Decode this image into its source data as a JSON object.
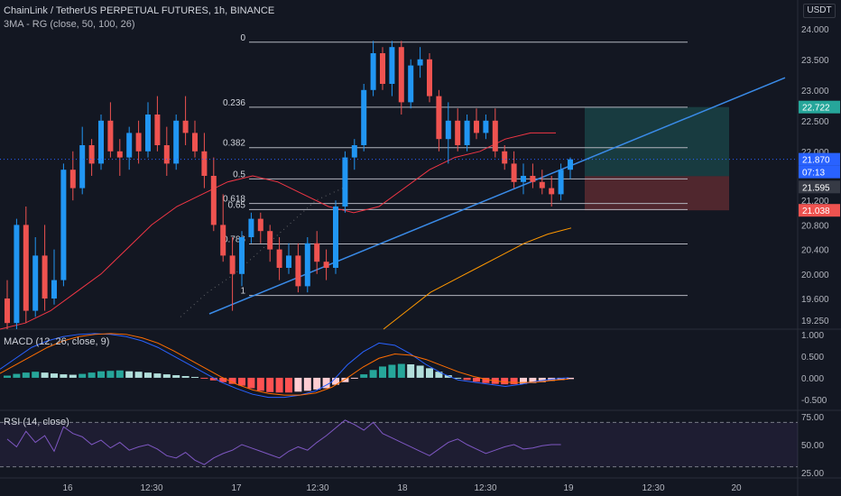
{
  "header": {
    "title": "ChainLink / TetherUS PERPETUAL FUTURES, 1h, BINANCE",
    "ma_indicator": "3MA - RG (close, 50, 100, 26)",
    "currency": "USDT"
  },
  "chart_data": {
    "type": "candlestick",
    "symbol": "ChainLink / TetherUS PERPETUAL FUTURES",
    "interval": "1h",
    "exchange": "BINANCE",
    "price_axis_ticks": [
      "24.000",
      "23.500",
      "23.000",
      "22.500",
      "22.000",
      "21.200",
      "20.800",
      "20.400",
      "20.000",
      "19.600",
      "19.250"
    ],
    "price_range": [
      19.1,
      24.35
    ],
    "time_axis_ticks": [
      "16",
      "12:30",
      "17",
      "12:30",
      "18",
      "12:30",
      "19",
      "12:30",
      "20"
    ],
    "price_tags": [
      {
        "label": "22.722",
        "color": "#26a69a"
      },
      {
        "label": "21.870",
        "color": "#2962ff"
      },
      {
        "label": "07:13",
        "color": "#2962ff"
      },
      {
        "label": "21.595",
        "color": "#363a45"
      },
      {
        "label": "21.038",
        "color": "#ef5350"
      }
    ],
    "fibonacci": [
      {
        "level": "0",
        "price": 23.78
      },
      {
        "level": "0.236",
        "price": 22.72
      },
      {
        "level": "0.382",
        "price": 22.06
      },
      {
        "level": "0.5",
        "price": 21.55
      },
      {
        "level": "0.618",
        "price": 21.15
      },
      {
        "level": "0.65",
        "price": 21.05
      },
      {
        "level": "0.786",
        "price": 20.49
      },
      {
        "level": "1",
        "price": 19.65
      }
    ],
    "candles": [
      {
        "o": 19.6,
        "h": 19.9,
        "l": 19.1,
        "c": 19.2
      },
      {
        "o": 19.2,
        "h": 20.9,
        "l": 19.1,
        "c": 20.8
      },
      {
        "o": 20.8,
        "h": 21.1,
        "l": 19.2,
        "c": 19.4
      },
      {
        "o": 19.4,
        "h": 20.6,
        "l": 19.3,
        "c": 20.3
      },
      {
        "o": 20.3,
        "h": 20.8,
        "l": 19.4,
        "c": 19.6
      },
      {
        "o": 19.6,
        "h": 20.4,
        "l": 19.5,
        "c": 19.9
      },
      {
        "o": 19.9,
        "h": 21.8,
        "l": 19.8,
        "c": 21.7
      },
      {
        "o": 21.7,
        "h": 22.0,
        "l": 21.2,
        "c": 21.4
      },
      {
        "o": 21.4,
        "h": 22.4,
        "l": 21.3,
        "c": 22.1
      },
      {
        "o": 22.1,
        "h": 22.2,
        "l": 21.6,
        "c": 21.8
      },
      {
        "o": 21.8,
        "h": 22.6,
        "l": 21.7,
        "c": 22.5
      },
      {
        "o": 22.5,
        "h": 22.8,
        "l": 21.9,
        "c": 22.0
      },
      {
        "o": 22.0,
        "h": 22.2,
        "l": 21.6,
        "c": 21.9
      },
      {
        "o": 21.9,
        "h": 22.4,
        "l": 21.7,
        "c": 22.3
      },
      {
        "o": 22.3,
        "h": 22.5,
        "l": 21.8,
        "c": 22.0
      },
      {
        "o": 22.0,
        "h": 22.8,
        "l": 21.9,
        "c": 22.6
      },
      {
        "o": 22.6,
        "h": 22.9,
        "l": 22.0,
        "c": 22.1
      },
      {
        "o": 22.1,
        "h": 22.4,
        "l": 21.6,
        "c": 21.8
      },
      {
        "o": 21.8,
        "h": 22.6,
        "l": 21.7,
        "c": 22.5
      },
      {
        "o": 22.5,
        "h": 22.9,
        "l": 22.1,
        "c": 22.3
      },
      {
        "o": 22.3,
        "h": 22.5,
        "l": 21.9,
        "c": 22.0
      },
      {
        "o": 22.0,
        "h": 22.3,
        "l": 21.4,
        "c": 21.6
      },
      {
        "o": 21.6,
        "h": 21.9,
        "l": 20.7,
        "c": 20.8
      },
      {
        "o": 20.8,
        "h": 21.3,
        "l": 20.2,
        "c": 20.3
      },
      {
        "o": 20.3,
        "h": 20.6,
        "l": 19.4,
        "c": 20.0
      },
      {
        "o": 20.0,
        "h": 20.7,
        "l": 19.8,
        "c": 20.6
      },
      {
        "o": 20.6,
        "h": 21.0,
        "l": 20.5,
        "c": 20.9
      },
      {
        "o": 20.9,
        "h": 21.0,
        "l": 20.5,
        "c": 20.7
      },
      {
        "o": 20.7,
        "h": 20.8,
        "l": 20.2,
        "c": 20.4
      },
      {
        "o": 20.4,
        "h": 20.6,
        "l": 19.9,
        "c": 20.1
      },
      {
        "o": 20.1,
        "h": 20.5,
        "l": 20.0,
        "c": 20.3
      },
      {
        "o": 20.3,
        "h": 20.5,
        "l": 19.7,
        "c": 19.8
      },
      {
        "o": 19.8,
        "h": 20.6,
        "l": 19.7,
        "c": 20.5
      },
      {
        "o": 20.5,
        "h": 20.7,
        "l": 20.0,
        "c": 20.2
      },
      {
        "o": 20.2,
        "h": 20.4,
        "l": 19.9,
        "c": 20.1
      },
      {
        "o": 20.1,
        "h": 21.2,
        "l": 20.0,
        "c": 21.1
      },
      {
        "o": 21.1,
        "h": 22.0,
        "l": 21.0,
        "c": 21.9
      },
      {
        "o": 21.9,
        "h": 22.2,
        "l": 21.7,
        "c": 22.1
      },
      {
        "o": 22.1,
        "h": 23.1,
        "l": 22.0,
        "c": 23.0
      },
      {
        "o": 23.0,
        "h": 23.8,
        "l": 22.9,
        "c": 23.6
      },
      {
        "o": 23.6,
        "h": 23.7,
        "l": 23.0,
        "c": 23.1
      },
      {
        "o": 23.1,
        "h": 23.8,
        "l": 22.9,
        "c": 23.7
      },
      {
        "o": 23.7,
        "h": 23.8,
        "l": 22.6,
        "c": 22.8
      },
      {
        "o": 22.8,
        "h": 23.5,
        "l": 22.7,
        "c": 23.4
      },
      {
        "o": 23.4,
        "h": 23.7,
        "l": 23.2,
        "c": 23.5
      },
      {
        "o": 23.5,
        "h": 23.6,
        "l": 22.8,
        "c": 22.9
      },
      {
        "o": 22.9,
        "h": 23.0,
        "l": 22.0,
        "c": 22.2
      },
      {
        "o": 22.2,
        "h": 22.8,
        "l": 21.8,
        "c": 22.5
      },
      {
        "o": 22.5,
        "h": 22.7,
        "l": 22.0,
        "c": 22.1
      },
      {
        "o": 22.1,
        "h": 22.6,
        "l": 22.0,
        "c": 22.5
      },
      {
        "o": 22.5,
        "h": 22.7,
        "l": 22.2,
        "c": 22.3
      },
      {
        "o": 22.3,
        "h": 22.6,
        "l": 22.2,
        "c": 22.5
      },
      {
        "o": 22.5,
        "h": 22.7,
        "l": 21.9,
        "c": 22.0
      },
      {
        "o": 22.0,
        "h": 22.1,
        "l": 21.7,
        "c": 21.8
      },
      {
        "o": 21.8,
        "h": 22.0,
        "l": 21.4,
        "c": 21.5
      },
      {
        "o": 21.5,
        "h": 21.8,
        "l": 21.3,
        "c": 21.6
      },
      {
        "o": 21.6,
        "h": 21.8,
        "l": 21.4,
        "c": 21.5
      },
      {
        "o": 21.5,
        "h": 21.7,
        "l": 21.3,
        "c": 21.4
      },
      {
        "o": 21.4,
        "h": 21.6,
        "l": 21.1,
        "c": 21.3
      },
      {
        "o": 21.3,
        "h": 21.8,
        "l": 21.2,
        "c": 21.7
      },
      {
        "o": 21.7,
        "h": 21.9,
        "l": 21.55,
        "c": 21.87
      }
    ],
    "ma_lines": [
      {
        "name": "MA 50",
        "color": "#f23645",
        "points": [
          19.1,
          19.2,
          19.4,
          19.7,
          20.0,
          20.4,
          20.8,
          21.1,
          21.3,
          21.5,
          21.6,
          21.5,
          21.3,
          21.1,
          21.0,
          21.1,
          21.4,
          21.7,
          21.9,
          22.0,
          22.2,
          22.3,
          22.3
        ]
      },
      {
        "name": "MA 100",
        "color": "#ff9800",
        "points": [
          19.1,
          19.4,
          19.7,
          19.9,
          20.1,
          20.3,
          20.5,
          20.65,
          20.75
        ]
      },
      {
        "name": "MA 26",
        "color": "#9b9b9b",
        "points": [
          19.3,
          19.7,
          20.0,
          20.4,
          20.8,
          21.2,
          21.4
        ]
      }
    ],
    "trendline": {
      "color": "#3a8be8",
      "from": {
        "index": 26,
        "price": 19.35
      },
      "to": {
        "index": 80,
        "price": 23.2
      }
    },
    "position": {
      "entry": 21.595,
      "target": 22.722,
      "stop": 21.038
    },
    "macd": {
      "label": "MACD (12, 26, close, 9)",
      "ticks": [
        "1.000",
        "0.500",
        "0.000",
        "-0.500"
      ],
      "range": [
        -0.75,
        1.1
      ],
      "histogram": [
        0.05,
        0.09,
        0.12,
        0.14,
        0.12,
        0.1,
        0.08,
        0.07,
        0.09,
        0.12,
        0.15,
        0.16,
        0.17,
        0.15,
        0.14,
        0.12,
        0.1,
        0.08,
        0.06,
        0.04,
        0.02,
        -0.02,
        -0.06,
        -0.1,
        -0.14,
        -0.18,
        -0.24,
        -0.3,
        -0.33,
        -0.34,
        -0.34,
        -0.32,
        -0.3,
        -0.27,
        -0.24,
        -0.16,
        -0.1,
        -0.02,
        0.08,
        0.18,
        0.26,
        0.3,
        0.32,
        0.31,
        0.28,
        0.22,
        0.14,
        0.06,
        0.0,
        -0.05,
        -0.09,
        -0.12,
        -0.14,
        -0.15,
        -0.15,
        -0.14,
        -0.12,
        -0.1,
        -0.07,
        -0.05,
        -0.03
      ],
      "macd_line": [
        0.2,
        0.45,
        0.7,
        0.85,
        0.95,
        1.0,
        1.02,
        1.0,
        0.95,
        0.85,
        0.7,
        0.5,
        0.3,
        0.1,
        -0.1,
        -0.25,
        -0.38,
        -0.45,
        -0.45,
        -0.4,
        -0.3,
        -0.1,
        0.3,
        0.6,
        0.8,
        0.75,
        0.55,
        0.3,
        0.1,
        -0.05,
        -0.1,
        -0.15,
        -0.2,
        -0.15,
        -0.08,
        -0.03,
        0.0
      ],
      "signal_line": [
        0.1,
        0.3,
        0.5,
        0.7,
        0.85,
        0.95,
        1.0,
        1.02,
        1.0,
        0.92,
        0.8,
        0.62,
        0.42,
        0.22,
        0.02,
        -0.15,
        -0.28,
        -0.36,
        -0.4,
        -0.4,
        -0.35,
        -0.22,
        0.0,
        0.25,
        0.45,
        0.55,
        0.52,
        0.42,
        0.28,
        0.14,
        0.03,
        -0.05,
        -0.1,
        -0.11,
        -0.1,
        -0.06,
        -0.03
      ]
    },
    "rsi": {
      "label": "RSI (14, close)",
      "ticks": [
        "75.00",
        "50.00",
        "25.00"
      ],
      "range": [
        20,
        80
      ],
      "bands": [
        70,
        30
      ],
      "values": [
        55,
        48,
        62,
        52,
        58,
        44,
        66,
        60,
        57,
        50,
        54,
        47,
        52,
        45,
        48,
        50,
        46,
        40,
        38,
        43,
        36,
        32,
        38,
        42,
        45,
        50,
        47,
        44,
        41,
        38,
        44,
        48,
        45,
        52,
        58,
        65,
        72,
        68,
        63,
        70,
        60,
        56,
        52,
        48,
        44,
        40,
        46,
        52,
        55,
        50,
        46,
        42,
        45,
        48,
        50,
        46,
        47,
        49,
        50,
        50
      ]
    }
  }
}
